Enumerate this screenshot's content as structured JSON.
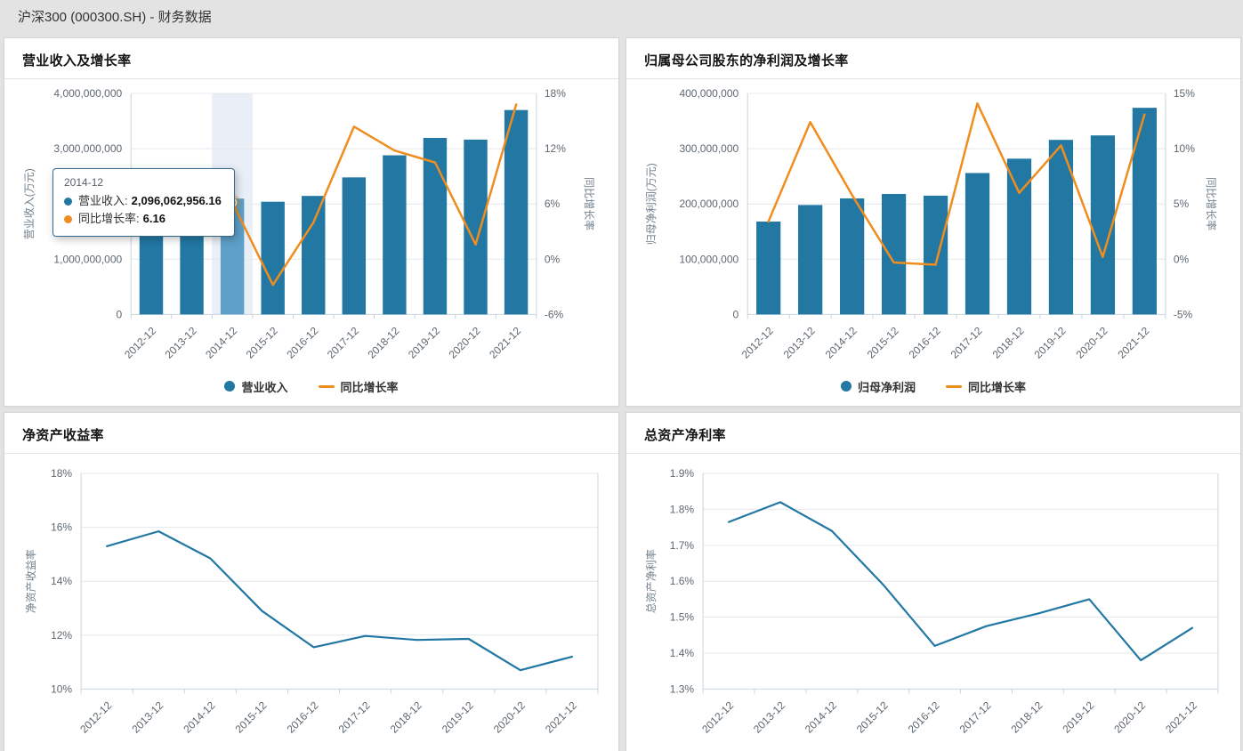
{
  "window_title": "沪深300 (000300.SH) - 财务数据",
  "colors": {
    "bar": "#2277a3",
    "bar_highlight": "#5d9fc7",
    "line_orange": "#ef8d1f",
    "line_blue": "#2277a3",
    "highlight_band": "#e9eef7",
    "grid": "#e4e8ec",
    "axis": "#c9d4dd"
  },
  "tooltip": {
    "title": "2014-12",
    "rows": [
      {
        "label": "营业收入",
        "value": "2,096,062,956.16",
        "color": "#2277a3"
      },
      {
        "label": "同比增长率",
        "value": "6.16",
        "color": "#ef8d1f"
      }
    ]
  },
  "chart_data": [
    {
      "type": "bar",
      "title": "营业收入及增长率",
      "categories": [
        "2012-12",
        "2013-12",
        "2014-12",
        "2015-12",
        "2016-12",
        "2017-12",
        "2018-12",
        "2019-12",
        "2020-12",
        "2021-12"
      ],
      "series": [
        {
          "name": "营业收入",
          "type": "bar",
          "axis": "left",
          "color": "#2277a3",
          "values": [
            1810000000,
            1975000000,
            2096062956.16,
            2040000000,
            2145000000,
            2480000000,
            2880000000,
            3195000000,
            3165000000,
            3700000000
          ]
        },
        {
          "name": "同比增长率",
          "type": "line",
          "axis": "right",
          "color": "#ef8d1f",
          "values": [
            9.2,
            8.5,
            6.16,
            -2.8,
            4.0,
            14.4,
            11.8,
            10.5,
            1.6,
            16.8
          ]
        }
      ],
      "ylabel": "营业收入(万元)",
      "y2label": "同比增长率",
      "ylim": [
        0,
        4000000000
      ],
      "yticks": [
        0,
        1000000000,
        2000000000,
        3000000000,
        4000000000
      ],
      "y2lim": [
        -6,
        18
      ],
      "y2ticks": [
        -6,
        0,
        6,
        12,
        18
      ],
      "tick_format": "comma",
      "tick_format_right": "percent",
      "grid": true,
      "legend_position": "bottom",
      "highlight_index": 2
    },
    {
      "type": "bar",
      "title": "归属母公司股东的净利润及增长率",
      "categories": [
        "2012-12",
        "2013-12",
        "2014-12",
        "2015-12",
        "2016-12",
        "2017-12",
        "2018-12",
        "2019-12",
        "2020-12",
        "2021-12"
      ],
      "series": [
        {
          "name": "归母净利润",
          "type": "bar",
          "axis": "left",
          "color": "#2277a3",
          "values": [
            168000000,
            198000000,
            210000000,
            218000000,
            215000000,
            256000000,
            282000000,
            316000000,
            324000000,
            374000000
          ]
        },
        {
          "name": "同比增长率",
          "type": "line",
          "axis": "right",
          "color": "#ef8d1f",
          "values": [
            3.4,
            12.4,
            5.8,
            -0.3,
            -0.5,
            14.1,
            6.0,
            10.3,
            0.2,
            13.1
          ]
        }
      ],
      "ylabel": "归母净利润(万元)",
      "y2label": "同比增长率",
      "ylim": [
        0,
        400000000
      ],
      "yticks": [
        0,
        100000000,
        200000000,
        300000000,
        400000000
      ],
      "y2lim": [
        -5,
        15
      ],
      "y2ticks": [
        -5,
        0,
        5,
        10,
        15
      ],
      "tick_format": "comma",
      "tick_format_right": "percent",
      "grid": true,
      "legend_position": "bottom"
    },
    {
      "type": "line",
      "title": "净资产收益率",
      "categories": [
        "2012-12",
        "2013-12",
        "2014-12",
        "2015-12",
        "2016-12",
        "2017-12",
        "2018-12",
        "2019-12",
        "2020-12",
        "2021-12"
      ],
      "series": [
        {
          "name": "净资产收益率",
          "type": "line",
          "axis": "left",
          "color": "#2277a3",
          "values": [
            15.3,
            15.85,
            14.85,
            12.9,
            11.55,
            11.97,
            11.82,
            11.86,
            10.7,
            11.2
          ]
        }
      ],
      "ylabel": "净资产收益率",
      "ylim": [
        10,
        18
      ],
      "yticks": [
        10,
        12,
        14,
        16,
        18
      ],
      "tick_format": "percent",
      "grid": true
    },
    {
      "type": "line",
      "title": "总资产净利率",
      "categories": [
        "2012-12",
        "2013-12",
        "2014-12",
        "2015-12",
        "2016-12",
        "2017-12",
        "2018-12",
        "2019-12",
        "2020-12",
        "2021-12"
      ],
      "series": [
        {
          "name": "总资产净利率",
          "type": "line",
          "axis": "left",
          "color": "#2277a3",
          "values": [
            1.765,
            1.82,
            1.74,
            1.59,
            1.42,
            1.475,
            1.51,
            1.55,
            1.38,
            1.47
          ]
        }
      ],
      "ylabel": "总资产净利率",
      "ylim": [
        1.3,
        1.9
      ],
      "yticks": [
        1.3,
        1.4,
        1.5,
        1.6,
        1.7,
        1.8,
        1.9
      ],
      "tick_format": "percent1",
      "grid": true
    }
  ]
}
